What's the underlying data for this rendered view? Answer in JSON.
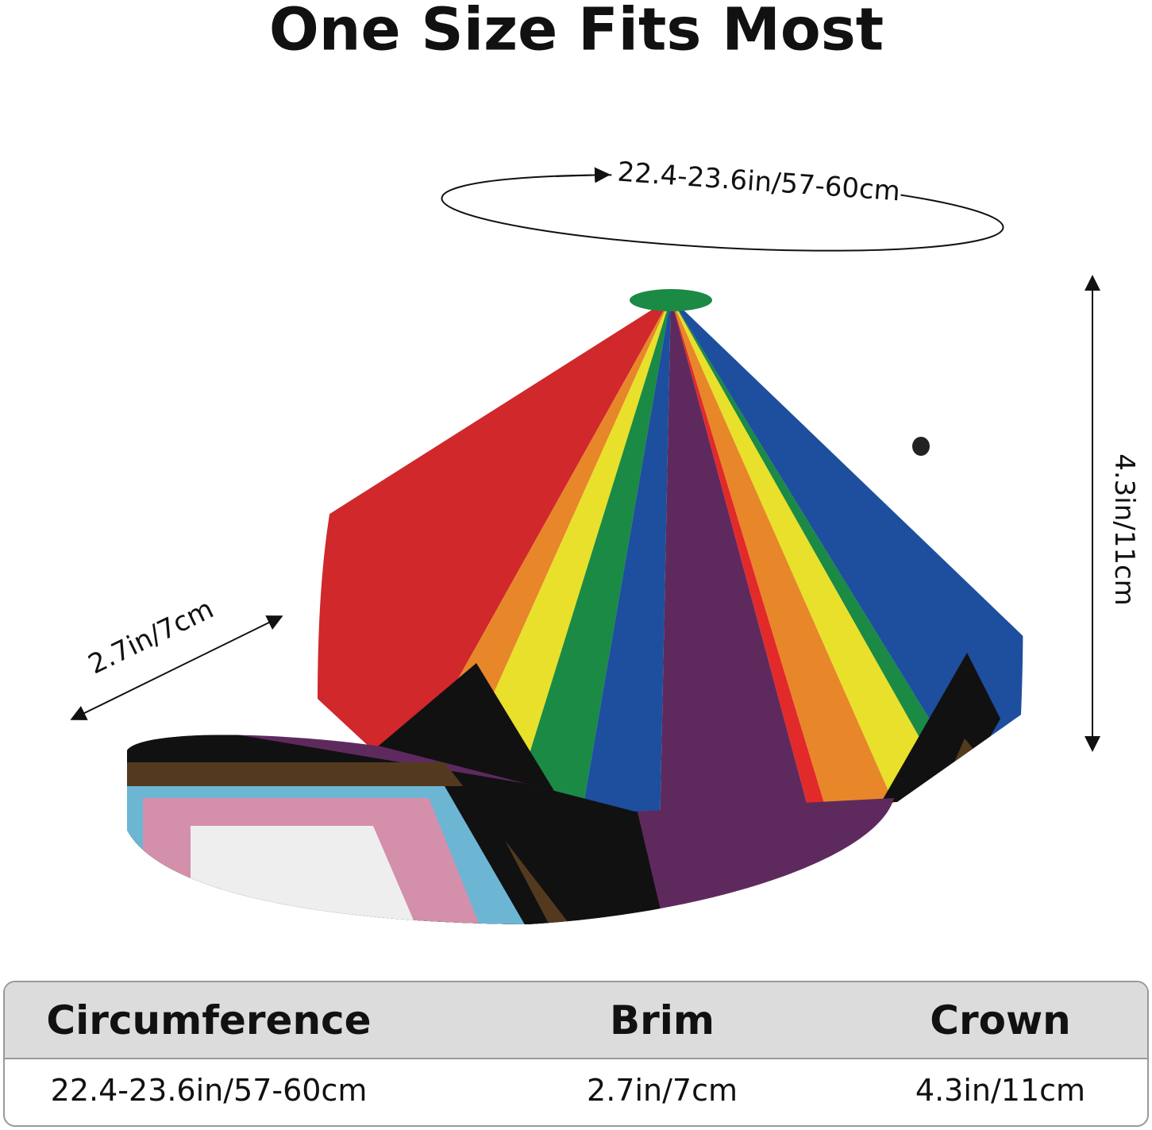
{
  "title": "One Size Fits Most",
  "dimensions": {
    "circumference": "22.4-23.6in/57-60cm",
    "crown": "4.3in/11cm",
    "brim": "2.7in/7cm"
  },
  "table": {
    "headers": [
      "Circumference",
      "Brim",
      "Crown"
    ],
    "rows": [
      [
        "22.4-23.6in/57-60cm",
        "2.7in/7cm",
        "4.3in/11cm"
      ]
    ]
  }
}
